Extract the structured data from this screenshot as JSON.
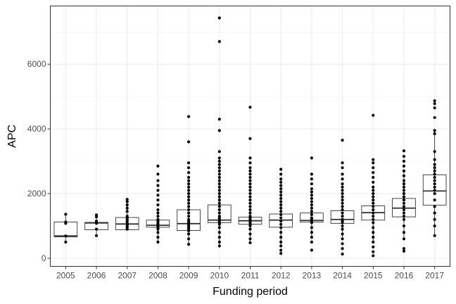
{
  "chart_data": {
    "type": "boxplot",
    "xlabel": "Funding period",
    "ylabel": "APC",
    "categories": [
      "2005",
      "2006",
      "2007",
      "2008",
      "2009",
      "2010",
      "2011",
      "2012",
      "2013",
      "2014",
      "2015",
      "2016",
      "2017"
    ],
    "y_ticks": [
      0,
      2000,
      4000,
      6000
    ],
    "ylim": [
      -250,
      7800
    ],
    "grid": true,
    "legend": "none",
    "boxes": [
      {
        "q1": 660,
        "median": 690,
        "q3": 1120,
        "whisker_low": 480,
        "whisker_high": 1340
      },
      {
        "q1": 880,
        "median": 1090,
        "q3": 1110,
        "whisker_low": 680,
        "whisker_high": 1320
      },
      {
        "q1": 880,
        "median": 1060,
        "q3": 1260,
        "whisker_low": 860,
        "whisker_high": 1820
      },
      {
        "q1": 960,
        "median": 1020,
        "q3": 1180,
        "whisker_low": 500,
        "whisker_high": 1500
      },
      {
        "q1": 860,
        "median": 1070,
        "q3": 1500,
        "whisker_low": 430,
        "whisker_high": 2420
      },
      {
        "q1": 1100,
        "median": 1180,
        "q3": 1650,
        "whisker_low": 380,
        "whisker_high": 2450
      },
      {
        "q1": 1050,
        "median": 1160,
        "q3": 1270,
        "whisker_low": 480,
        "whisker_high": 1620
      },
      {
        "q1": 960,
        "median": 1180,
        "q3": 1370,
        "whisker_low": 380,
        "whisker_high": 1970
      },
      {
        "q1": 1120,
        "median": 1170,
        "q3": 1400,
        "whisker_low": 680,
        "whisker_high": 1800
      },
      {
        "q1": 1080,
        "median": 1200,
        "q3": 1470,
        "whisker_low": 560,
        "whisker_high": 1950
      },
      {
        "q1": 1180,
        "median": 1410,
        "q3": 1620,
        "whisker_low": 520,
        "whisker_high": 2250
      },
      {
        "q1": 1280,
        "median": 1550,
        "q3": 1850,
        "whisker_low": 560,
        "whisker_high": 2700
      },
      {
        "q1": 1640,
        "median": 2080,
        "q3": 2580,
        "whisker_low": 700,
        "whisker_high": 4000
      }
    ],
    "points": [
      [
        500,
        690,
        1080,
        1120,
        1360
      ],
      [
        700,
        900,
        1080,
        1100,
        1150,
        1280,
        1340
      ],
      [
        900,
        950,
        1000,
        1050,
        1100,
        1150,
        1200,
        1250,
        1300,
        1450,
        1550,
        1650,
        1750,
        1820
      ],
      [
        500,
        650,
        800,
        900,
        950,
        1000,
        1050,
        1100,
        1150,
        1200,
        1300,
        1400,
        1500,
        1650,
        1800,
        1950,
        2100,
        2250,
        2400,
        2600,
        2850
      ],
      [
        430,
        600,
        750,
        850,
        900,
        950,
        1000,
        1050,
        1100,
        1150,
        1200,
        1300,
        1400,
        1500,
        1600,
        1700,
        1800,
        1900,
        2000,
        2100,
        2200,
        2300,
        2400,
        2500,
        2650,
        2800,
        2950,
        3600,
        4380
      ],
      [
        380,
        500,
        650,
        800,
        950,
        1050,
        1100,
        1150,
        1200,
        1250,
        1300,
        1400,
        1500,
        1600,
        1700,
        1800,
        1900,
        2000,
        2100,
        2200,
        2300,
        2400,
        2500,
        2600,
        2700,
        2800,
        2900,
        3000,
        3100,
        3300,
        3950,
        4300,
        6700,
        7430
      ],
      [
        480,
        600,
        750,
        900,
        1000,
        1050,
        1100,
        1150,
        1200,
        1250,
        1300,
        1400,
        1500,
        1600,
        1700,
        1800,
        1900,
        2000,
        2100,
        2200,
        2300,
        2400,
        2500,
        2600,
        2700,
        2800,
        2950,
        3100,
        3700,
        4670
      ],
      [
        150,
        250,
        380,
        500,
        650,
        800,
        950,
        1050,
        1150,
        1250,
        1350,
        1450,
        1550,
        1650,
        1750,
        1850,
        1950,
        2050,
        2150,
        2250,
        2350,
        2450,
        2600,
        2750
      ],
      [
        250,
        500,
        650,
        800,
        950,
        1100,
        1150,
        1200,
        1250,
        1350,
        1450,
        1550,
        1650,
        1750,
        1850,
        1950,
        2050,
        2150,
        2300,
        2450,
        2600,
        3100
      ],
      [
        130,
        300,
        450,
        600,
        750,
        900,
        1000,
        1100,
        1150,
        1200,
        1300,
        1400,
        1500,
        1600,
        1700,
        1800,
        1900,
        2000,
        2100,
        2200,
        2300,
        2450,
        2600,
        2800,
        2950,
        3650
      ],
      [
        80,
        200,
        350,
        500,
        650,
        800,
        950,
        1100,
        1200,
        1300,
        1400,
        1500,
        1600,
        1700,
        1800,
        1900,
        2000,
        2100,
        2200,
        2350,
        2500,
        2650,
        2800,
        2950,
        3050,
        4420
      ],
      [
        220,
        300,
        600,
        800,
        1000,
        1200,
        1300,
        1400,
        1500,
        1600,
        1700,
        1800,
        1900,
        2000,
        2100,
        2200,
        2300,
        2400,
        2550,
        2700,
        2850,
        3000,
        3150,
        3320
      ],
      [
        700,
        1000,
        1200,
        1400,
        1600,
        1800,
        2000,
        2100,
        2200,
        2300,
        2400,
        2500,
        2600,
        2700,
        2800,
        2900,
        3050,
        3300,
        3850,
        3950,
        4350,
        4650,
        4780,
        4870
      ]
    ]
  }
}
